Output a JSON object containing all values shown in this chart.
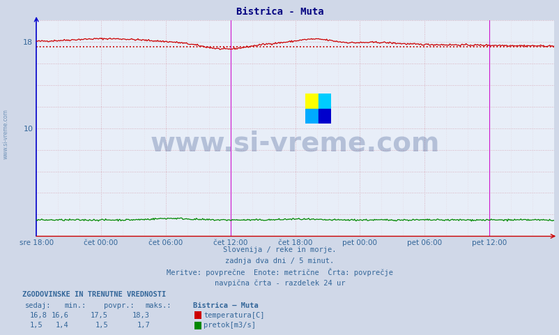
{
  "title": "Bistrica - Muta",
  "title_color": "#000080",
  "bg_color": "#d0d8e8",
  "plot_bg_color": "#e8eef8",
  "xlim": [
    0,
    576
  ],
  "ylim": [
    0,
    20
  ],
  "ytick_positions": [
    10,
    18
  ],
  "ytick_labels": [
    "10",
    "18"
  ],
  "xtick_positions": [
    0,
    72,
    144,
    216,
    288,
    360,
    432,
    504,
    576
  ],
  "xtick_labels": [
    "sre 18:00",
    "čet 00:00",
    "čet 06:00",
    "čet 12:00",
    "čet 18:00",
    "pet 00:00",
    "pet 06:00",
    "pet 12:00",
    ""
  ],
  "temp_color": "#cc0000",
  "flow_color": "#008800",
  "avg_value": 17.5,
  "avg_line_color": "#cc0000",
  "vline_positions": [
    216,
    504
  ],
  "vline_color": "#cc00cc",
  "watermark_text": "www.si-vreme.com",
  "watermark_color": "#1a3a7a",
  "watermark_alpha": 0.25,
  "footer_lines": [
    "Slovenija / reke in morje.",
    "zadnja dva dni / 5 minut.",
    "Meritve: povprečne  Enote: metrične  Črta: povprečje",
    "navpična črta - razdelek 24 ur"
  ],
  "footer_color": "#336699",
  "legend_title": "ZGODOVINSKE IN TRENUTNE VREDNOSTI",
  "legend_headers": [
    "sedaj:",
    "min.:",
    "povpr.:",
    "maks.:"
  ],
  "temp_values": [
    "16,8",
    "16,6",
    "17,5",
    "18,3"
  ],
  "flow_values": [
    "1,5",
    "1,4",
    "1,5",
    "1,7"
  ],
  "legend_station": "Bistrica – Muta",
  "sidebar_text": "www.si-vreme.com",
  "sidebar_color": "#336699",
  "left_spine_color": "#0000cc",
  "bottom_spine_color": "#cc0000"
}
